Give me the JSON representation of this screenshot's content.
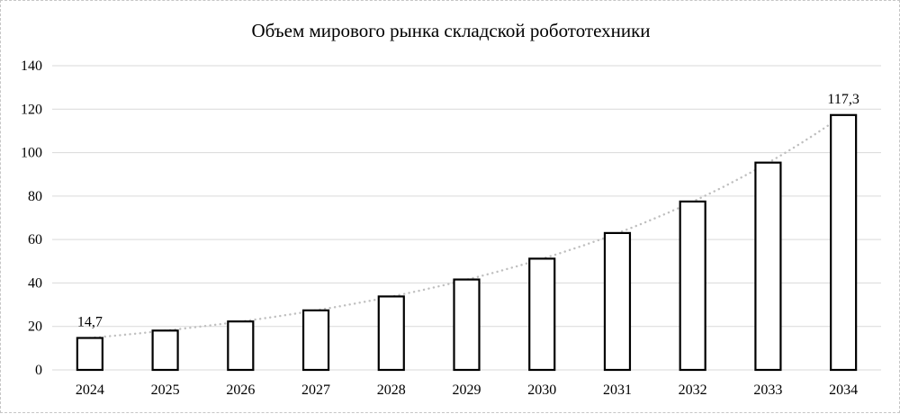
{
  "chart_data": {
    "type": "bar",
    "title": "Объем мирового рынка складской робототехники",
    "categories": [
      "2024",
      "2025",
      "2026",
      "2027",
      "2028",
      "2029",
      "2030",
      "2031",
      "2032",
      "2033",
      "2034"
    ],
    "values": [
      14.7,
      18.1,
      22.3,
      27.4,
      33.8,
      41.6,
      51.2,
      63.0,
      77.5,
      95.4,
      117.3
    ],
    "xlabel": "",
    "ylabel": "",
    "ylim": [
      0,
      140
    ],
    "ytick_step": 20,
    "ytick_labels": [
      "0",
      "20",
      "40",
      "60",
      "80",
      "100",
      "120",
      "140"
    ],
    "grid": true,
    "legend_position": "none",
    "data_labels": {
      "first": "14,7",
      "last": "117,3"
    },
    "trendline": {
      "type": "exponential",
      "style": "dotted",
      "color": "#bfbfbf"
    },
    "colors": {
      "bar_fill": "#ffffff",
      "bar_border": "#000000",
      "gridline": "#d9d9d9",
      "text": "#000000",
      "frame_border": "#c6c6c6"
    }
  }
}
